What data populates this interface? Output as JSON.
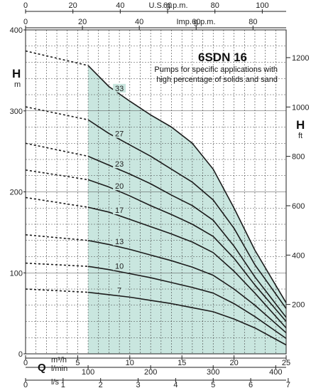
{
  "chart_data": {
    "type": "line",
    "title": "6SDN 16",
    "subtitle_lines": [
      "Pumps for specific applications with",
      "high percentage of solids and sand"
    ],
    "ylabel_left": "H",
    "ylabel_left_unit": "m",
    "ylabel_right": "H",
    "ylabel_right_unit": "ft",
    "xlabel_symbol": "Q",
    "xlabel_units": [
      "m³/h",
      "l/min",
      "l/s"
    ],
    "top_axis_labels": [
      "U.S. g.p.m.",
      "Imp. g.p.m."
    ],
    "x_m3h": {
      "lim": [
        0,
        25
      ],
      "ticks": [
        "0",
        "5",
        "10",
        "15",
        "20",
        "25"
      ]
    },
    "x_lmin": {
      "ticks": [
        "100",
        "200",
        "300",
        "400"
      ]
    },
    "x_ls": {
      "ticks": [
        "0",
        "1",
        "2",
        "3",
        "4",
        "5",
        "6",
        "7"
      ]
    },
    "x_usgpm": {
      "ticks": [
        "0",
        "20",
        "40",
        "60",
        "80",
        "100"
      ]
    },
    "x_impgpm": {
      "ticks": [
        "0",
        "20",
        "40",
        "60",
        "80"
      ]
    },
    "y_m": {
      "lim": [
        0,
        400
      ],
      "ticks": [
        "0",
        "100",
        "200",
        "300",
        "400"
      ]
    },
    "y_ft": {
      "ticks": [
        "200",
        "400",
        "600",
        "800",
        "1000",
        "1200"
      ]
    },
    "operating_range_m3h": [
      6,
      25
    ],
    "series": [
      {
        "name": "33",
        "shutoff_h": 374,
        "x": [
          6,
          8,
          10,
          12,
          14,
          16,
          18,
          20,
          22,
          25
        ],
        "y": [
          356,
          330,
          312,
          295,
          280,
          260,
          228,
          180,
          128,
          63
        ]
      },
      {
        "name": "27",
        "shutoff_h": 305,
        "x": [
          6,
          8,
          10,
          12,
          14,
          16,
          18,
          20,
          22,
          25
        ],
        "y": [
          289,
          272,
          258,
          244,
          228,
          212,
          190,
          155,
          110,
          56
        ]
      },
      {
        "name": "23",
        "shutoff_h": 260,
        "x": [
          6,
          8,
          10,
          12,
          14,
          16,
          18,
          20,
          22,
          25
        ],
        "y": [
          244,
          233,
          222,
          210,
          196,
          183,
          165,
          133,
          95,
          45
        ]
      },
      {
        "name": "20",
        "shutoff_h": 227,
        "x": [
          6,
          8,
          10,
          12,
          14,
          16,
          18,
          20,
          22,
          25
        ],
        "y": [
          215,
          206,
          195,
          183,
          172,
          160,
          145,
          118,
          85,
          40
        ]
      },
      {
        "name": "17",
        "shutoff_h": 193,
        "x": [
          6,
          8,
          10,
          12,
          14,
          16,
          18,
          20,
          22,
          25
        ],
        "y": [
          181,
          175,
          166,
          157,
          148,
          138,
          125,
          102,
          75,
          32
        ]
      },
      {
        "name": "13",
        "shutoff_h": 147,
        "x": [
          6,
          8,
          10,
          12,
          14,
          16,
          18,
          20,
          22,
          25
        ],
        "y": [
          140,
          135,
          129,
          122,
          115,
          107,
          97,
          80,
          60,
          26
        ]
      },
      {
        "name": "10",
        "shutoff_h": 112,
        "x": [
          6,
          8,
          10,
          12,
          14,
          16,
          18,
          20,
          22,
          25
        ],
        "y": [
          108,
          104,
          99,
          94,
          88,
          82,
          75,
          62,
          46,
          19
        ]
      },
      {
        "name": "7",
        "shutoff_h": 80,
        "x": [
          6,
          8,
          10,
          12,
          14,
          16,
          18,
          20,
          22,
          25
        ],
        "y": [
          76,
          73,
          70,
          66,
          62,
          57,
          52,
          43,
          32,
          11
        ]
      }
    ]
  }
}
